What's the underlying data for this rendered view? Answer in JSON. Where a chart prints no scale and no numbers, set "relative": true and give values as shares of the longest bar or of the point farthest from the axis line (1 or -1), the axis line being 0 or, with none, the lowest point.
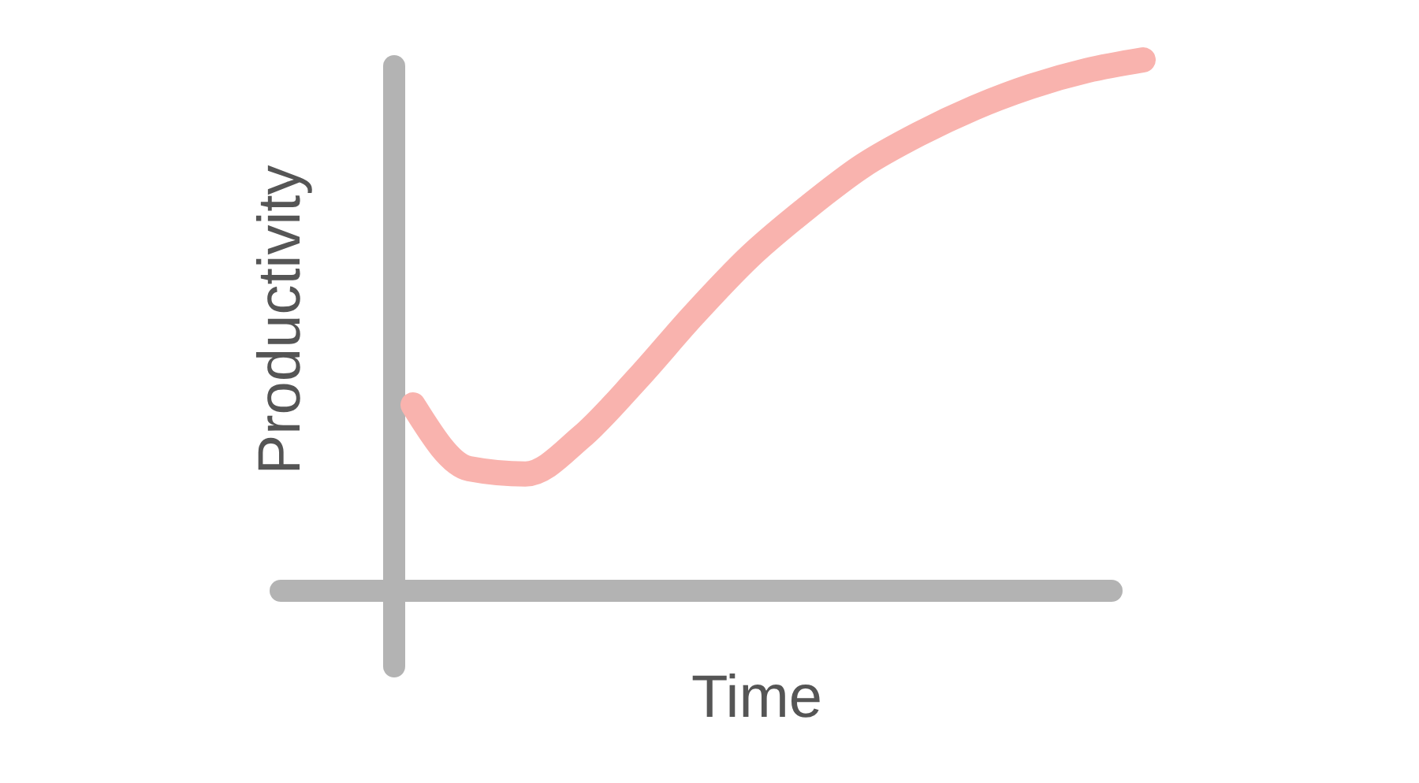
{
  "chart_data": {
    "type": "line",
    "relative": true,
    "xlabel": "Time",
    "ylabel": "Productivity",
    "categories": [
      null,
      null,
      null,
      null,
      null,
      null,
      null,
      null,
      null,
      null,
      null,
      null,
      null,
      null
    ],
    "series": [
      {
        "color": "#f9b3ae",
        "values": [
          0.35,
          0.23,
          0.22,
          0.29,
          0.4,
          0.52,
          0.63,
          0.72,
          0.8,
          0.86,
          0.91,
          0.95,
          0.98,
          1.0
        ]
      }
    ],
    "line_style": "solid"
  }
}
